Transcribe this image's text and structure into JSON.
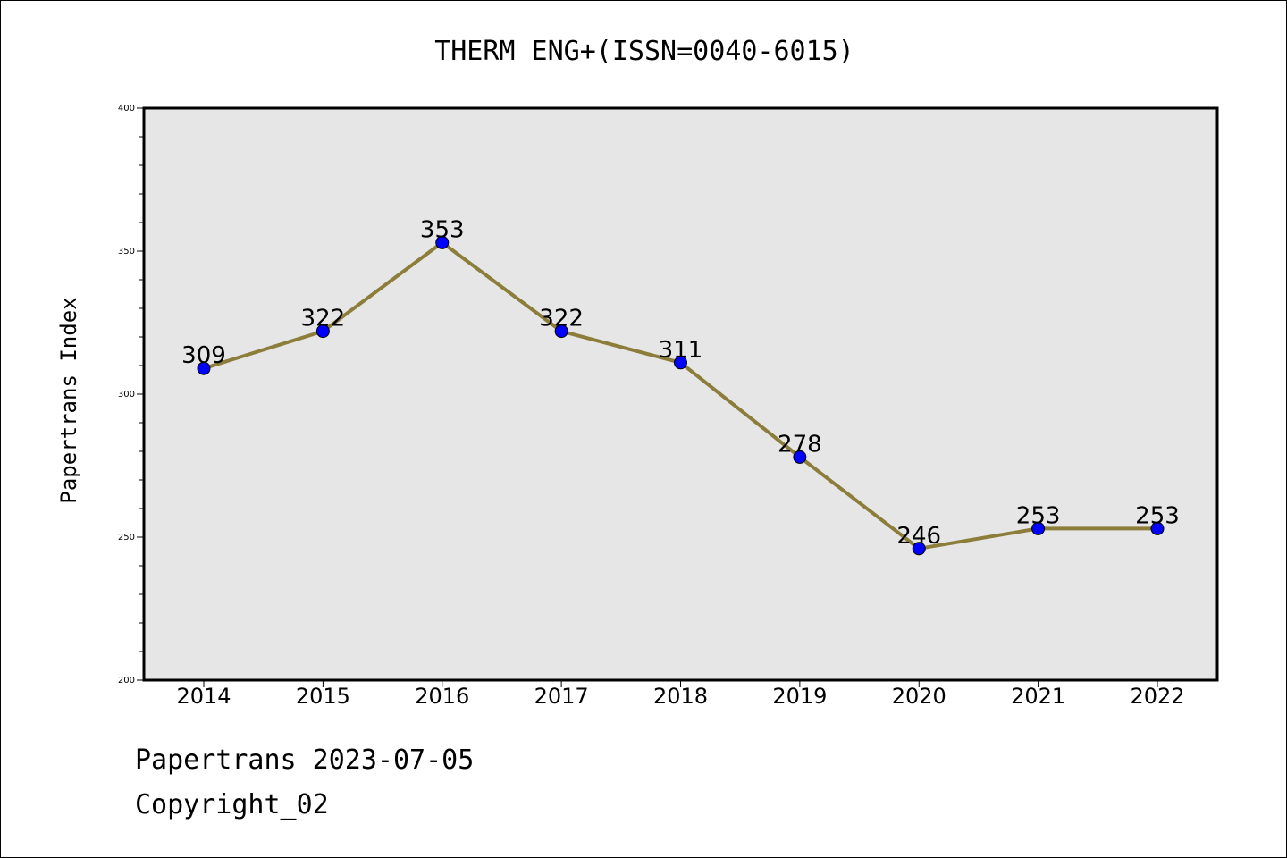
{
  "chart_data": {
    "type": "line",
    "title": "THERM ENG+(ISSN=0040-6015)",
    "ylabel": "Papertrans Index",
    "xlabel": "",
    "categories": [
      "2014",
      "2015",
      "2016",
      "2017",
      "2018",
      "2019",
      "2020",
      "2021",
      "2022"
    ],
    "series": [
      {
        "values": [
          309,
          322,
          353,
          322,
          311,
          278,
          246,
          253,
          253
        ]
      }
    ],
    "data_labels": [
      "309",
      "322",
      "353",
      "322",
      "311",
      "278",
      "246",
      "253",
      "253"
    ],
    "ylim": [
      200,
      400
    ],
    "y_major_ticks": [
      200,
      250,
      300,
      350,
      400
    ],
    "y_major_tick_labels": [
      "200",
      "250",
      "300",
      "350",
      "400"
    ],
    "y_minor_step": 10,
    "grid": false,
    "colors": {
      "line": "#8c7e3a",
      "marker": "#0000ff",
      "plot_bg": "#e6e6e6"
    }
  },
  "footer": {
    "line1": "Papertrans 2023-07-05",
    "line2": "Copyright_02"
  }
}
